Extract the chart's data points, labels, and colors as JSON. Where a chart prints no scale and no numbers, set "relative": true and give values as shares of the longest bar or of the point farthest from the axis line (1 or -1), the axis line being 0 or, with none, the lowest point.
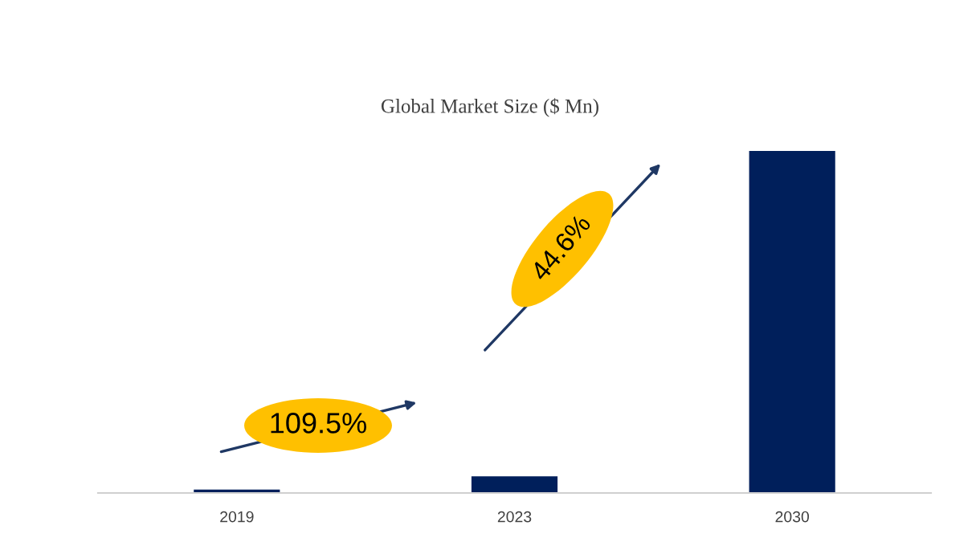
{
  "chart_data": {
    "type": "bar",
    "title": "Global Market Size ($ Mn)",
    "categories": [
      "2019",
      "2023",
      "2030"
    ],
    "values": [
      0.01,
      0.049,
      1
    ],
    "color": "#001f5b",
    "relative": true,
    "grid": false,
    "annotations": [
      "109.5%",
      "44.6%"
    ]
  }
}
